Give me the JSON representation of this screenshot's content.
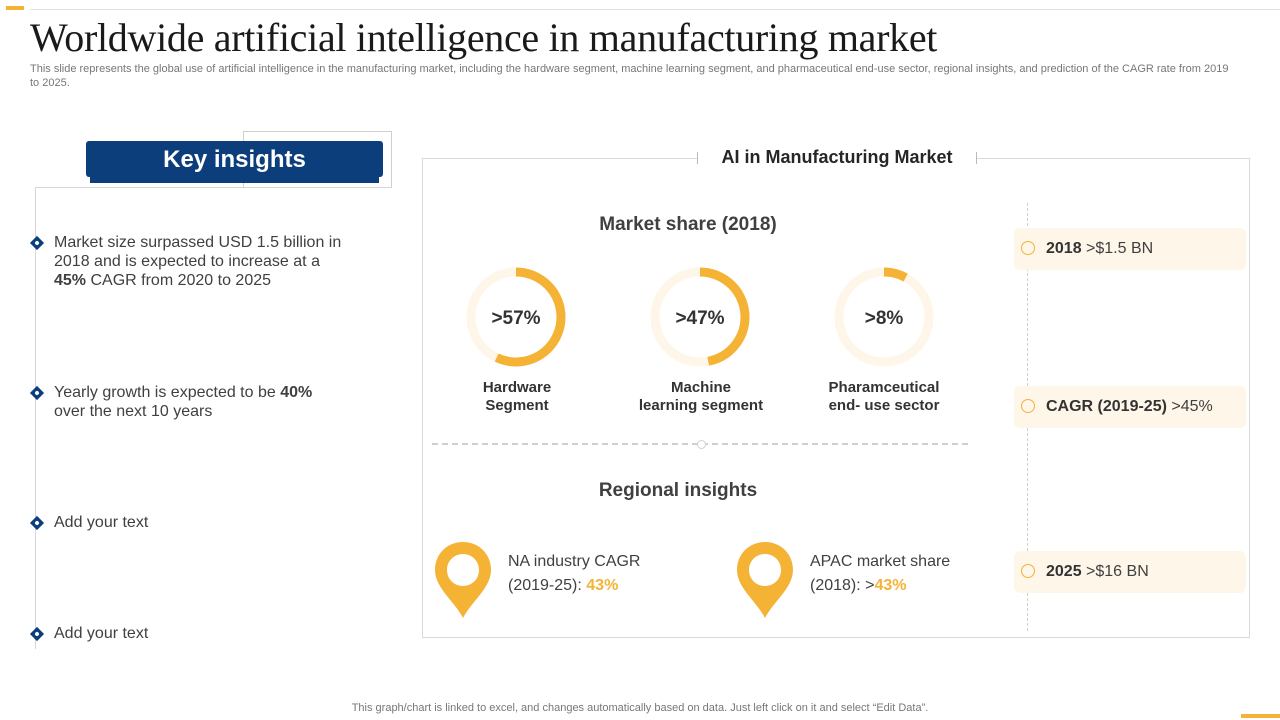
{
  "header": {
    "title": "Worldwide artificial intelligence in manufacturing market",
    "subtitle": "This slide represents the global use of artificial intelligence in the manufacturing market, including the hardware segment, machine learning segment, and pharmaceutical end-use sector, regional insights, and prediction of the CAGR rate from 2019 to 2025."
  },
  "key_insights": {
    "heading": "Key insights",
    "items": [
      {
        "lead": "Market size surpassed USD 1.5 billion in 2018 and is expected to increase at a",
        "strong": "45%",
        "tail": " CAGR from 2020 to 2025"
      },
      {
        "lead": "Yearly growth is expected to be",
        "strong": "40%",
        "tail": " over the next 10 years"
      },
      {
        "text": "Add your text"
      },
      {
        "text": "Add your text"
      }
    ]
  },
  "market": {
    "title": "AI in Manufacturing Market",
    "share_heading": "Market share (2018)",
    "segments": [
      {
        "label_line1": "Hardware",
        "label_line2": "Segment",
        "display": ">57%",
        "percent": 57
      },
      {
        "label_line1": "Machine",
        "label_line2": "learning segment",
        "display": ">47%",
        "percent": 47
      },
      {
        "label_line1": "Pharamceutical",
        "label_line2": "end- use sector",
        "display": ">8%",
        "percent": 8
      }
    ],
    "regional_heading": "Regional insights",
    "regions": [
      {
        "line1": "NA industry CAGR",
        "line2_prefix": "(2019-25): ",
        "value": "43%"
      },
      {
        "line1": "APAC market share",
        "line2_prefix": "(2018): >",
        "value": "43%"
      }
    ]
  },
  "stats": [
    {
      "label": "2018",
      "value": " >$1.5 BN"
    },
    {
      "label": "CAGR (2019-25)",
      "value": " >45%"
    },
    {
      "label": "2025",
      "value": " >$16 BN"
    }
  ],
  "footer": {
    "note": "This graph/chart is linked to excel, and changes automatically based on data. Just left click on it and select “Edit Data”."
  },
  "colors": {
    "accent": "#F5B335",
    "accent_light": "#FEF6E8",
    "brand_blue": "#0d3e7c"
  },
  "chart_data": {
    "type": "pie",
    "title": "Market share (2018)",
    "categories": [
      "Hardware Segment",
      "Machine learning segment",
      "Pharamceutical end- use sector"
    ],
    "values": [
      57,
      47,
      8
    ]
  }
}
